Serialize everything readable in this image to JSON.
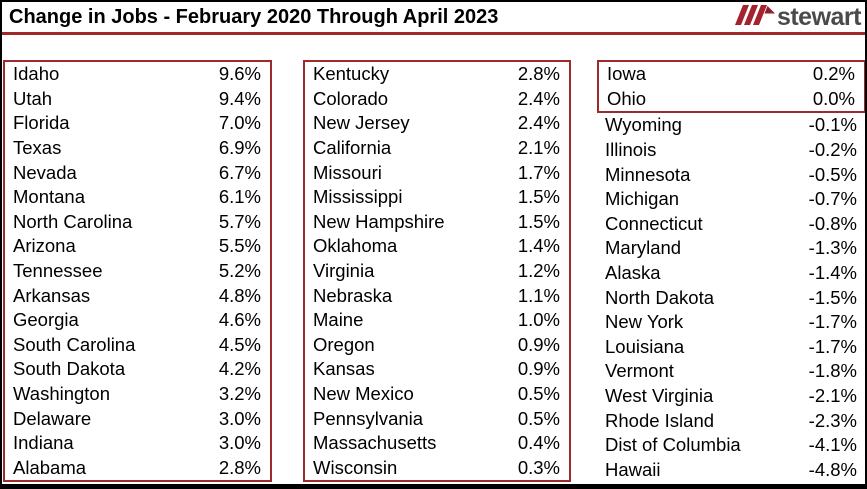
{
  "title": "Change in Jobs - February 2020 Through April 2023",
  "logo": {
    "text": "stewart",
    "icon": "stewart-triple-stripe-icon"
  },
  "colors": {
    "accent_red": "#9E2A2B",
    "logo_stripe_red": "#A6212E",
    "logo_text_gray": "#4A4A4A",
    "outer_border": "#000000",
    "background": "#FFFFFF",
    "text": "#000000"
  },
  "chart_data": {
    "type": "table",
    "title": "Change in Jobs - February 2020 Through April 2023",
    "unit": "percent change in jobs",
    "layout": "three columns of state/value pairs; columns 1 and 2 fully enclosed in red boxes; in column 3 only Iowa and Ohio are boxed",
    "columns": [
      {
        "groups": [
          {
            "boxed": true,
            "rows": [
              {
                "state": "Idaho",
                "value": "9.6%"
              },
              {
                "state": "Utah",
                "value": "9.4%"
              },
              {
                "state": "Florida",
                "value": "7.0%"
              },
              {
                "state": "Texas",
                "value": "6.9%"
              },
              {
                "state": "Nevada",
                "value": "6.7%"
              },
              {
                "state": "Montana",
                "value": "6.1%"
              },
              {
                "state": "North Carolina",
                "value": "5.7%"
              },
              {
                "state": "Arizona",
                "value": "5.5%"
              },
              {
                "state": "Tennessee",
                "value": "5.2%"
              },
              {
                "state": "Arkansas",
                "value": "4.8%"
              },
              {
                "state": "Georgia",
                "value": "4.6%"
              },
              {
                "state": "South Carolina",
                "value": "4.5%"
              },
              {
                "state": "South Dakota",
                "value": "4.2%"
              },
              {
                "state": "Washington",
                "value": "3.2%"
              },
              {
                "state": "Delaware",
                "value": "3.0%"
              },
              {
                "state": "Indiana",
                "value": "3.0%"
              },
              {
                "state": "Alabama",
                "value": "2.8%"
              }
            ]
          }
        ]
      },
      {
        "groups": [
          {
            "boxed": true,
            "rows": [
              {
                "state": "Kentucky",
                "value": "2.8%"
              },
              {
                "state": "Colorado",
                "value": "2.4%"
              },
              {
                "state": "New Jersey",
                "value": "2.4%"
              },
              {
                "state": "California",
                "value": "2.1%"
              },
              {
                "state": "Missouri",
                "value": "1.7%"
              },
              {
                "state": "Mississippi",
                "value": "1.5%"
              },
              {
                "state": "New Hampshire",
                "value": "1.5%"
              },
              {
                "state": "Oklahoma",
                "value": "1.4%"
              },
              {
                "state": "Virginia",
                "value": "1.2%"
              },
              {
                "state": "Nebraska",
                "value": "1.1%"
              },
              {
                "state": "Maine",
                "value": "1.0%"
              },
              {
                "state": "Oregon",
                "value": "0.9%"
              },
              {
                "state": "Kansas",
                "value": "0.9%"
              },
              {
                "state": "New Mexico",
                "value": "0.5%"
              },
              {
                "state": "Pennsylvania",
                "value": "0.5%"
              },
              {
                "state": "Massachusetts",
                "value": "0.4%"
              },
              {
                "state": "Wisconsin",
                "value": "0.3%"
              }
            ]
          }
        ]
      },
      {
        "groups": [
          {
            "boxed": true,
            "rows": [
              {
                "state": "Iowa",
                "value": "0.2%"
              },
              {
                "state": "Ohio",
                "value": "0.0%"
              }
            ]
          },
          {
            "boxed": false,
            "rows": [
              {
                "state": "Wyoming",
                "value": "-0.1%"
              },
              {
                "state": "Illinois",
                "value": "-0.2%"
              },
              {
                "state": "Minnesota",
                "value": "-0.5%"
              },
              {
                "state": "Michigan",
                "value": "-0.7%"
              },
              {
                "state": "Connecticut",
                "value": "-0.8%"
              },
              {
                "state": "Maryland",
                "value": "-1.3%"
              },
              {
                "state": "Alaska",
                "value": "-1.4%"
              },
              {
                "state": "North Dakota",
                "value": "-1.5%"
              },
              {
                "state": "New York",
                "value": "-1.7%"
              },
              {
                "state": "Louisiana",
                "value": "-1.7%"
              },
              {
                "state": "Vermont",
                "value": "-1.8%"
              },
              {
                "state": "West Virginia",
                "value": "-2.1%"
              },
              {
                "state": "Rhode Island",
                "value": "-2.3%"
              },
              {
                "state": "Dist of Columbia",
                "value": "-4.1%"
              },
              {
                "state": "Hawaii",
                "value": "-4.8%"
              }
            ]
          }
        ]
      }
    ]
  }
}
